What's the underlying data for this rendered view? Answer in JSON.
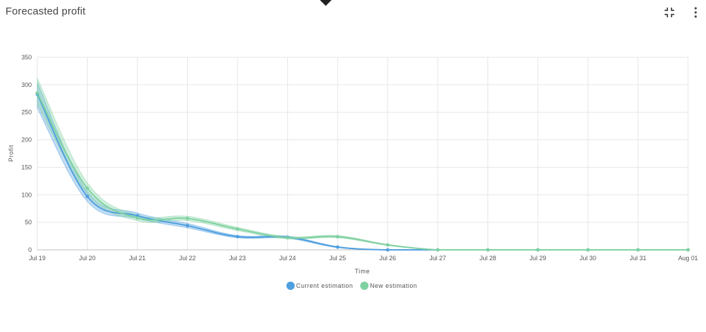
{
  "header": {
    "title": "Forecasted profit",
    "icons": {
      "collapse": "fullscreen-exit-icon",
      "more": "more-vertical-icon"
    }
  },
  "chart_data": {
    "type": "line",
    "title": "Forecasted profit",
    "xlabel": "Time",
    "ylabel": "Profit",
    "ylim": [
      0,
      350
    ],
    "yticks": [
      0,
      50,
      100,
      150,
      200,
      250,
      300,
      350
    ],
    "categories": [
      "Jul 19",
      "Jul 20",
      "Jul 21",
      "Jul 22",
      "Jul 23",
      "Jul 24",
      "Jul 25",
      "Jul 26",
      "Jul 27",
      "Jul 28",
      "Jul 29",
      "Jul 30",
      "Jul 31",
      "Aug 01"
    ],
    "grid": true,
    "legend_position": "bottom",
    "series": [
      {
        "name": "Current estimation",
        "color": "#4f9fe0",
        "values": [
          283,
          97,
          62,
          44,
          24,
          23,
          5,
          0,
          0,
          0,
          0,
          0,
          0,
          0
        ],
        "band": {
          "lower": [
            258,
            88,
            57,
            40,
            22,
            21,
            4,
            0,
            0,
            0,
            0,
            0,
            0,
            0
          ],
          "upper": [
            304,
            106,
            67,
            48,
            26,
            25,
            6,
            0,
            0,
            0,
            0,
            0,
            0,
            0
          ]
        }
      },
      {
        "name": "New estimation",
        "color": "#7fd1a1",
        "values": [
          285,
          112,
          58,
          57,
          38,
          22,
          24,
          9,
          0,
          0,
          0,
          0,
          0,
          0
        ],
        "band": {
          "lower": [
            265,
            102,
            53,
            53,
            35,
            20,
            22,
            8,
            0,
            0,
            0,
            0,
            0,
            0
          ],
          "upper": [
            312,
            122,
            63,
            61,
            41,
            24,
            26,
            10,
            0,
            0,
            0,
            0,
            0,
            0
          ]
        }
      }
    ]
  }
}
